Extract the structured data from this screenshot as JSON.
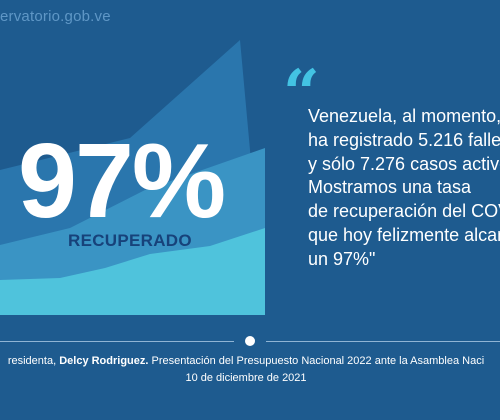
{
  "header": {
    "site_url": "ervatorio.gob.ve"
  },
  "stat": {
    "value": "97%",
    "label": "RECUPERADO"
  },
  "quote": {
    "mark": "“",
    "lines": [
      "Venezuela, al momento,",
      "ha registrado 5.216 falle",
      "y sólo 7.276 casos activo",
      "Mostramos una tasa",
      "de recuperación del COV",
      "que hoy felizmente alcan",
      "un 97%\""
    ]
  },
  "credit": {
    "prefix": "residenta, ",
    "name": "Delcy Rodriguez.",
    "suffix": " Presentación del Presupuesto Nacional 2022 ante la Asamblea Naci",
    "date": "10 de diciembre de 2021"
  },
  "colors": {
    "background": "#1e5b8f",
    "mountain_back": "#2a76ad",
    "mountain_mid": "#3a94c4",
    "mountain_front": "#4fc3dc",
    "quote_accent": "#43c3e3",
    "label_dark": "#17427a"
  }
}
